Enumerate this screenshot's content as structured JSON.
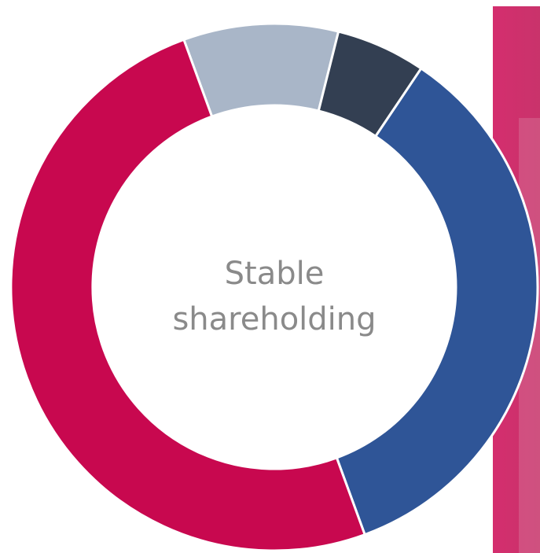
{
  "chart_data": {
    "type": "donut",
    "center_label": [
      "Stable",
      "shareholding"
    ],
    "values": [
      9.5,
      5.5,
      35,
      50
    ],
    "colors": [
      "#a9b6c8",
      "#333f52",
      "#2f5597",
      "#c8084f"
    ]
  }
}
